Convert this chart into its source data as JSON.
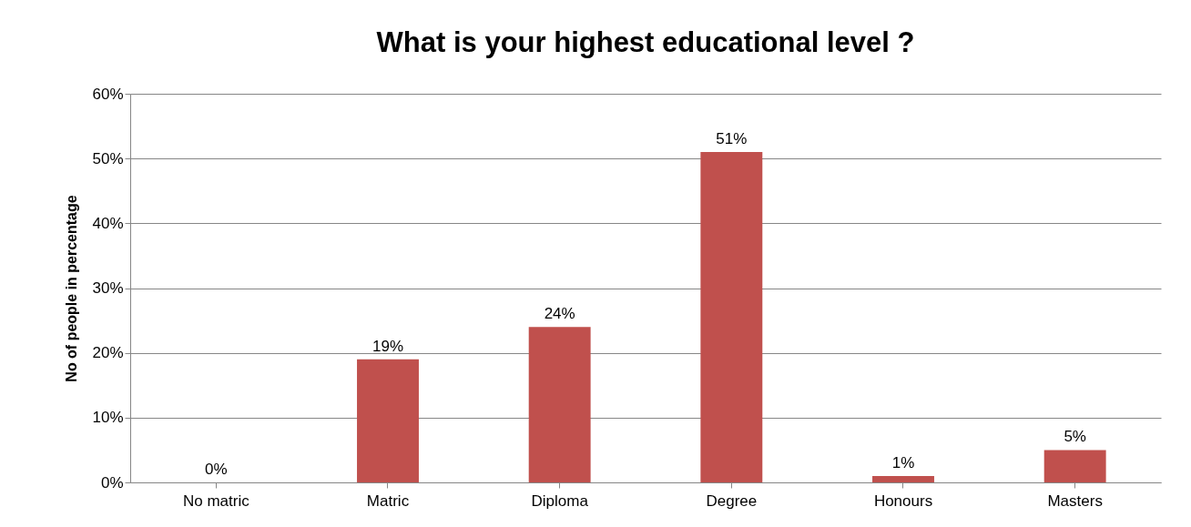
{
  "chart_data": {
    "type": "bar",
    "title": "What is your highest educational level ?",
    "ylabel": "No of people in percentage",
    "categories": [
      "No matric",
      "Matric",
      "Diploma",
      "Degree",
      "Honours",
      "Masters"
    ],
    "values": [
      0,
      19,
      24,
      51,
      1,
      5
    ],
    "value_labels": [
      "0%",
      "19%",
      "24%",
      "51%",
      "1%",
      "5%"
    ],
    "color": "#c0504d",
    "ylim": [
      0,
      60
    ],
    "yticks": [
      {
        "value": 0,
        "label": "0%"
      },
      {
        "value": 10,
        "label": "10%"
      },
      {
        "value": 20,
        "label": "20%"
      },
      {
        "value": 30,
        "label": "30%"
      },
      {
        "value": 40,
        "label": "40%"
      },
      {
        "value": 50,
        "label": "50%"
      },
      {
        "value": 60,
        "label": "60%"
      }
    ],
    "grid": "y"
  }
}
